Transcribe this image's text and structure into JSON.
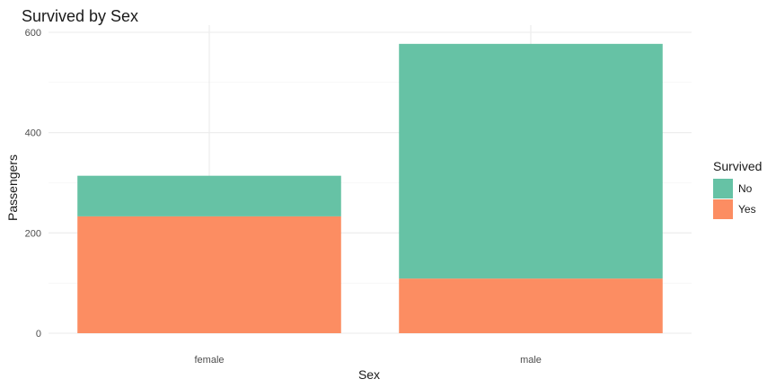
{
  "chart_data": {
    "type": "bar",
    "stacked": true,
    "title": "Survived by Sex",
    "xlabel": "Sex",
    "ylabel": "Passengers",
    "categories": [
      "female",
      "male"
    ],
    "series": [
      {
        "name": "No",
        "values": [
          81,
          468
        ],
        "color": "#66c2a5"
      },
      {
        "name": "Yes",
        "values": [
          233,
          109
        ],
        "color": "#fc8d62"
      }
    ],
    "ylim": [
      0,
      600
    ],
    "yticks": [
      0,
      200,
      400,
      600
    ],
    "grid": true,
    "legend": {
      "title": "Survived",
      "position": "right"
    }
  }
}
